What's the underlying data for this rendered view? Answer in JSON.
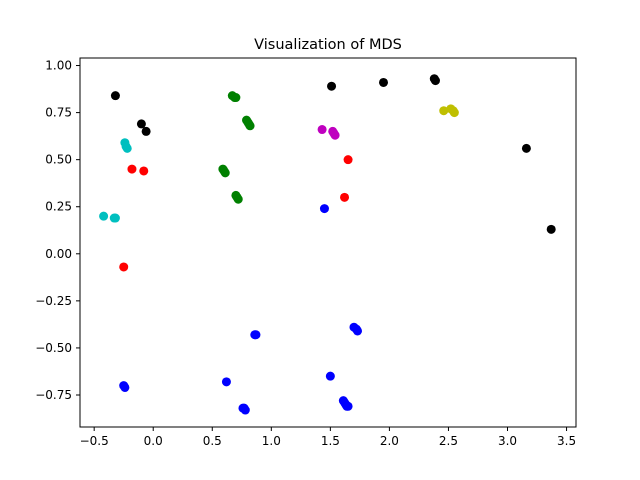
{
  "chart_data": {
    "type": "scatter",
    "title": "Visualization of MDS",
    "xlabel": "",
    "ylabel": "",
    "xlim": [
      -0.62,
      3.58
    ],
    "ylim": [
      -0.92,
      1.04
    ],
    "xticks": [
      -0.5,
      0.0,
      0.5,
      1.0,
      1.5,
      2.0,
      2.5,
      3.0,
      3.5
    ],
    "xtick_labels": [
      "−0.5",
      "0.0",
      "0.5",
      "1.0",
      "1.5",
      "2.0",
      "2.5",
      "3.0",
      "3.5"
    ],
    "yticks": [
      -0.75,
      -0.5,
      -0.25,
      0.0,
      0.25,
      0.5,
      0.75,
      1.0
    ],
    "ytick_labels": [
      "−0.75",
      "−0.50",
      "−0.25",
      "0.00",
      "0.25",
      "0.50",
      "0.75",
      "1.00"
    ],
    "grid": false,
    "legend": false,
    "series": [
      {
        "color": "#000000",
        "points": [
          [
            -0.32,
            0.84
          ],
          [
            -0.1,
            0.69
          ],
          [
            -0.06,
            0.65
          ],
          [
            1.51,
            0.89
          ],
          [
            1.95,
            0.91
          ],
          [
            2.38,
            0.93
          ],
          [
            2.39,
            0.92
          ],
          [
            3.16,
            0.56
          ],
          [
            3.37,
            0.13
          ]
        ]
      },
      {
        "color": "#00bfbf",
        "points": [
          [
            -0.24,
            0.59
          ],
          [
            -0.23,
            0.57
          ],
          [
            -0.22,
            0.56
          ],
          [
            -0.42,
            0.2
          ],
          [
            -0.33,
            0.19
          ],
          [
            -0.32,
            0.19
          ]
        ]
      },
      {
        "color": "#ff0000",
        "points": [
          [
            -0.18,
            0.45
          ],
          [
            -0.08,
            0.44
          ],
          [
            -0.25,
            -0.07
          ],
          [
            1.65,
            0.5
          ],
          [
            1.62,
            0.3
          ]
        ]
      },
      {
        "color": "#008000",
        "points": [
          [
            0.67,
            0.84
          ],
          [
            0.69,
            0.83
          ],
          [
            0.7,
            0.83
          ],
          [
            0.79,
            0.71
          ],
          [
            0.8,
            0.7
          ],
          [
            0.81,
            0.69
          ],
          [
            0.82,
            0.68
          ],
          [
            0.59,
            0.45
          ],
          [
            0.6,
            0.44
          ],
          [
            0.61,
            0.43
          ],
          [
            0.7,
            0.31
          ],
          [
            0.71,
            0.3
          ],
          [
            0.72,
            0.29
          ]
        ]
      },
      {
        "color": "#bf00bf",
        "points": [
          [
            1.43,
            0.66
          ],
          [
            1.52,
            0.65
          ],
          [
            1.53,
            0.64
          ],
          [
            1.54,
            0.63
          ]
        ]
      },
      {
        "color": "#bfbf00",
        "points": [
          [
            2.46,
            0.76
          ],
          [
            2.52,
            0.77
          ],
          [
            2.54,
            0.76
          ],
          [
            2.55,
            0.75
          ]
        ]
      },
      {
        "color": "#0000ff",
        "points": [
          [
            1.45,
            0.24
          ],
          [
            0.86,
            -0.43
          ],
          [
            0.87,
            -0.43
          ],
          [
            1.7,
            -0.39
          ],
          [
            1.72,
            -0.4
          ],
          [
            1.73,
            -0.41
          ],
          [
            1.5,
            -0.65
          ],
          [
            -0.25,
            -0.7
          ],
          [
            -0.24,
            -0.71
          ],
          [
            0.62,
            -0.68
          ],
          [
            0.76,
            -0.82
          ],
          [
            0.77,
            -0.82
          ],
          [
            0.78,
            -0.83
          ],
          [
            1.61,
            -0.78
          ],
          [
            1.62,
            -0.79
          ],
          [
            1.63,
            -0.8
          ],
          [
            1.64,
            -0.81
          ],
          [
            1.65,
            -0.81
          ]
        ]
      }
    ]
  }
}
